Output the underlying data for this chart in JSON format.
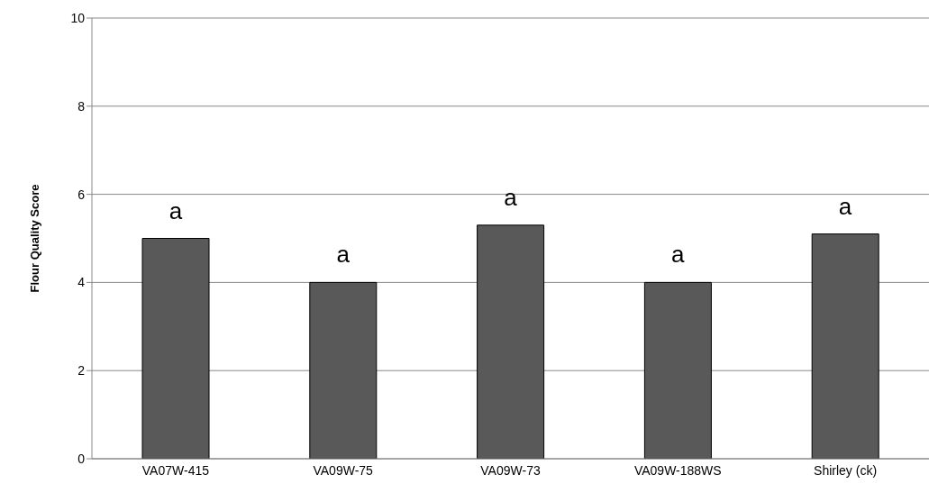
{
  "chart_data": {
    "type": "bar",
    "ylabel": "Flour Quality Score",
    "categories": [
      "VA07W-415",
      "VA09W-75",
      "VA09W-73",
      "VA09W-188WS",
      "Shirley (ck)"
    ],
    "values": [
      5.0,
      4.0,
      5.3,
      4.0,
      5.1
    ],
    "color": "#595959",
    "ylim": [
      0,
      10
    ],
    "yticks": [
      0,
      2,
      4,
      6,
      8,
      10
    ],
    "grid": "y",
    "annotations": [
      {
        "text": "a",
        "x": "VA07W-415",
        "y": 5.0
      },
      {
        "text": "a",
        "x": "VA09W-75",
        "y": 4.0
      },
      {
        "text": "a",
        "x": "VA09W-73",
        "y": 5.3
      },
      {
        "text": "a",
        "x": "VA09W-188WS",
        "y": 4.0
      },
      {
        "text": "a",
        "x": "Shirley (ck)",
        "y": 5.1
      }
    ]
  }
}
